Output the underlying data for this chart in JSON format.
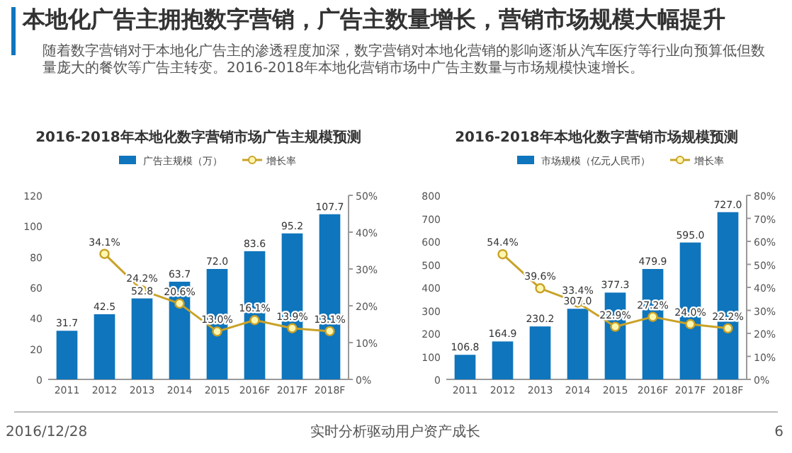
{
  "chart_data": [
    {
      "type": "other",
      "title": "本地化广告主拥抱数字营销，广告主数量增长，营销市场规模大幅提升",
      "subtitle": "随着数字营销对于本地化广告主的渗透程度加深，数字营销对本地化营销的影响逐渐从汽车医疗等行业向预算低但数量庞大的餐饮等广告主转变。2016-2018年本地化营销市场中广告主数量与市场规模快速增长。",
      "annotations": [
        "2016/12/28",
        "实时分析驱动用户资产成长",
        "6"
      ]
    },
    {
      "type": "bar",
      "title": "2016-2018年本地化数字营销市场广告主规模预测",
      "categories": [
        "2011",
        "2012",
        "2013",
        "2014",
        "2015",
        "2016F",
        "2017F",
        "2018F"
      ],
      "legend": "top",
      "grid": false,
      "ylim": [
        0,
        120
      ],
      "yticks": [
        0,
        20,
        40,
        60,
        80,
        100,
        120
      ],
      "y2lim": [
        0,
        50
      ],
      "y2ticks": [
        {
          "value": 0,
          "label": "0%"
        },
        {
          "value": 10,
          "label": "10%"
        },
        {
          "value": 20,
          "label": "20%"
        },
        {
          "value": 30,
          "label": "30%"
        },
        {
          "value": 40,
          "label": "40%"
        },
        {
          "value": 50,
          "label": "50%"
        }
      ],
      "series": [
        {
          "name": "广告主规模（万）",
          "type": "bar",
          "color": "#0f75bc",
          "values": [
            31.7,
            42.5,
            52.8,
            63.7,
            72.0,
            83.6,
            95.2,
            107.7
          ],
          "value_labels": [
            "31.7",
            "42.5",
            "52.8",
            "63.7",
            "72.0",
            "83.6",
            "95.2",
            "107.7"
          ]
        },
        {
          "name": "增长率",
          "type": "line",
          "axis": "y2",
          "color": "#c9a227",
          "marker": "circle",
          "values": [
            null,
            34.1,
            24.2,
            20.6,
            13.0,
            16.1,
            13.9,
            13.1
          ],
          "value_labels": [
            null,
            "34.1%",
            "24.2%",
            "20.6%",
            "13.0%",
            "16.1%",
            "13.9%",
            "13.1%"
          ]
        }
      ]
    },
    {
      "type": "bar",
      "title": "2016-2018年本地化数字营销市场规模预测",
      "categories": [
        "2011",
        "2012",
        "2013",
        "2014",
        "2015",
        "2016F",
        "2017F",
        "2018F"
      ],
      "legend": "top",
      "grid": false,
      "ylim": [
        0,
        800
      ],
      "yticks": [
        0,
        100,
        200,
        300,
        400,
        500,
        600,
        700,
        800
      ],
      "y2lim": [
        0,
        80
      ],
      "y2ticks": [
        {
          "value": 0,
          "label": "0%"
        },
        {
          "value": 10,
          "label": "10%"
        },
        {
          "value": 20,
          "label": "20%"
        },
        {
          "value": 30,
          "label": "30%"
        },
        {
          "value": 40,
          "label": "40%"
        },
        {
          "value": 50,
          "label": "50%"
        },
        {
          "value": 60,
          "label": "60%"
        },
        {
          "value": 70,
          "label": "70%"
        },
        {
          "value": 80,
          "label": "80%"
        }
      ],
      "series": [
        {
          "name": "市场规模（亿元人民币）",
          "type": "bar",
          "color": "#0f75bc",
          "values": [
            106.8,
            164.9,
            230.2,
            307.0,
            377.3,
            479.9,
            595.0,
            727.0
          ],
          "value_labels": [
            "106.8",
            "164.9",
            "230.2",
            "307.0",
            "377.3",
            "479.9",
            "595.0",
            "727.0"
          ]
        },
        {
          "name": "增长率",
          "type": "line",
          "axis": "y2",
          "color": "#c9a227",
          "marker": "circle",
          "values": [
            null,
            54.4,
            39.6,
            33.4,
            22.9,
            27.2,
            24.0,
            22.2
          ],
          "value_labels": [
            null,
            "54.4%",
            "39.6%",
            "33.4%",
            "22.9%",
            "27.2%",
            "24.0%",
            "22.2%"
          ]
        }
      ]
    }
  ]
}
